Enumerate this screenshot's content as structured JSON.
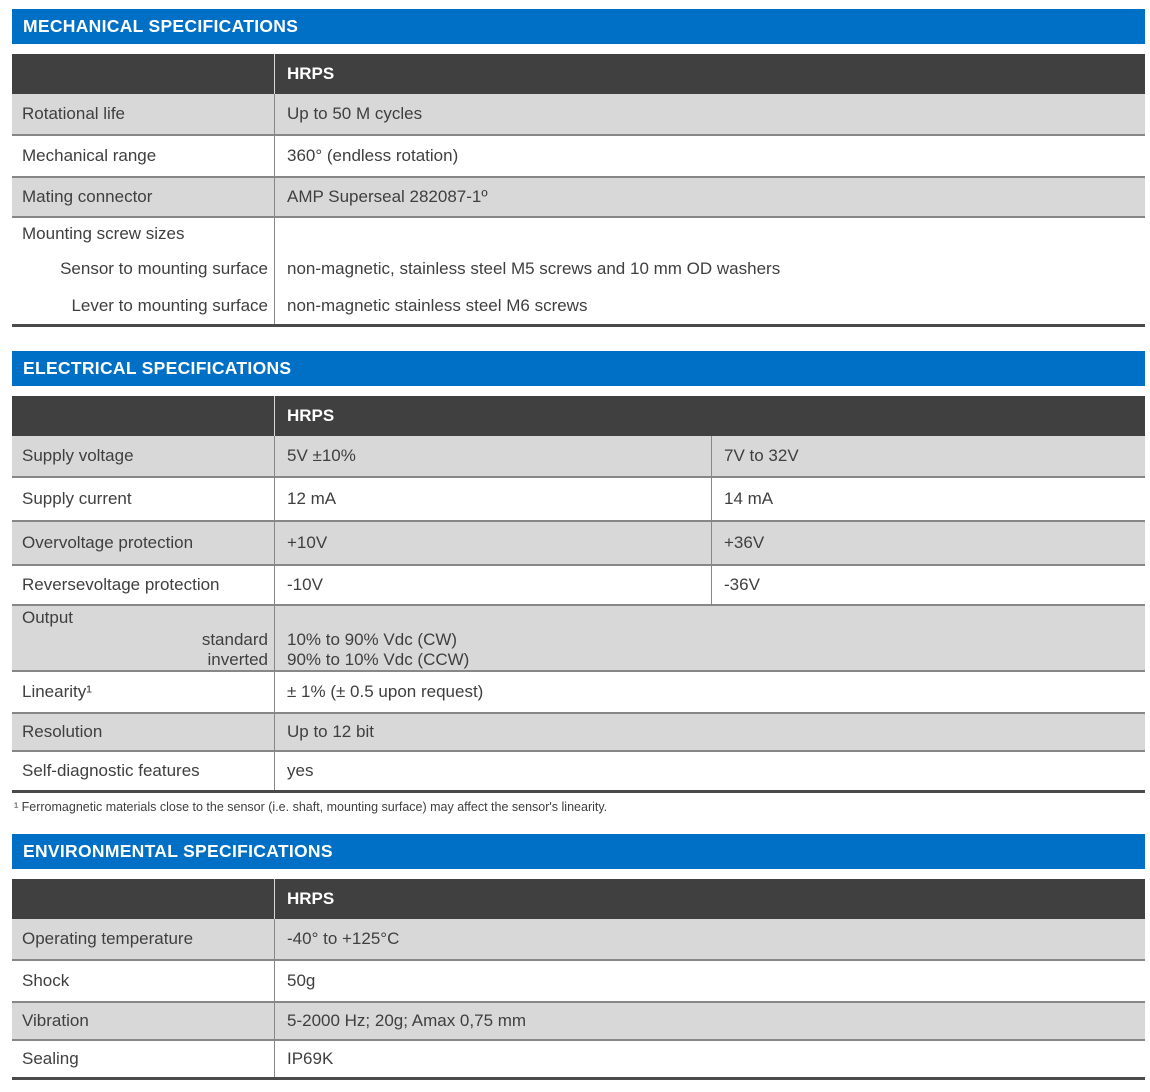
{
  "colors": {
    "accent_blue": "#0070c6",
    "header_dark": "#404040",
    "row_gray": "#d8d8d8",
    "row_white": "#ffffff",
    "divider_gray": "#878787",
    "table_bottom": "#4a4a4a",
    "text": "#3f3f3f"
  },
  "sections": {
    "mechanical": {
      "title": "MECHANICAL SPECIFICATIONS",
      "column_header": "HRPS",
      "rows": {
        "rotational_life": {
          "label": "Rotational life",
          "value": "Up to 50 M cycles"
        },
        "mechanical_range": {
          "label": "Mechanical range",
          "value": "360° (endless rotation)"
        },
        "mating_connector": {
          "label": "Mating connector",
          "value": "AMP Superseal 282087-1º"
        },
        "mounting_screws": {
          "label": "Mounting screw sizes",
          "sub1_label": "Sensor to mounting surface",
          "sub1_value": "non-magnetic, stainless steel M5 screws and 10 mm OD washers",
          "sub2_label": "Lever to mounting surface",
          "sub2_value": "non-magnetic stainless steel M6 screws"
        }
      }
    },
    "electrical": {
      "title": "ELECTRICAL SPECIFICATIONS",
      "column_header": "HRPS",
      "rows": {
        "supply_voltage": {
          "label": "Supply voltage",
          "value1": "5V ±10%",
          "value2": "7V to 32V"
        },
        "supply_current": {
          "label": "Supply current",
          "value1": "12 mA",
          "value2": "14 mA"
        },
        "overvoltage": {
          "label": "Overvoltage protection",
          "value1": "+10V",
          "value2": "+36V"
        },
        "reversevoltage": {
          "label": "Reversevoltage protection",
          "value1": "-10V",
          "value2": "-36V"
        },
        "output": {
          "label": "Output",
          "sub1_label": "standard",
          "sub1_value": "10% to 90% Vdc (CW)",
          "sub2_label": "inverted",
          "sub2_value": "90% to 10% Vdc (CCW)"
        },
        "linearity": {
          "label": "Linearity¹",
          "value": "± 1% (± 0.5 upon request)"
        },
        "resolution": {
          "label": "Resolution",
          "value": "Up to 12 bit"
        },
        "self_diagnostic": {
          "label": "Self-diagnostic features",
          "value": "yes"
        }
      },
      "footnote": "¹ Ferromagnetic materials close to the sensor (i.e. shaft, mounting surface) may affect the sensor's linearity."
    },
    "environmental": {
      "title": "ENVIRONMENTAL SPECIFICATIONS",
      "column_header": "HRPS",
      "rows": {
        "operating_temperature": {
          "label": "Operating temperature",
          "value": "-40° to +125°C"
        },
        "shock": {
          "label": "Shock",
          "value": "50g"
        },
        "vibration": {
          "label": "Vibration",
          "value": "5-2000 Hz; 20g; Amax 0,75 mm"
        },
        "sealing": {
          "label": "Sealing",
          "value": "IP69K"
        }
      }
    }
  }
}
